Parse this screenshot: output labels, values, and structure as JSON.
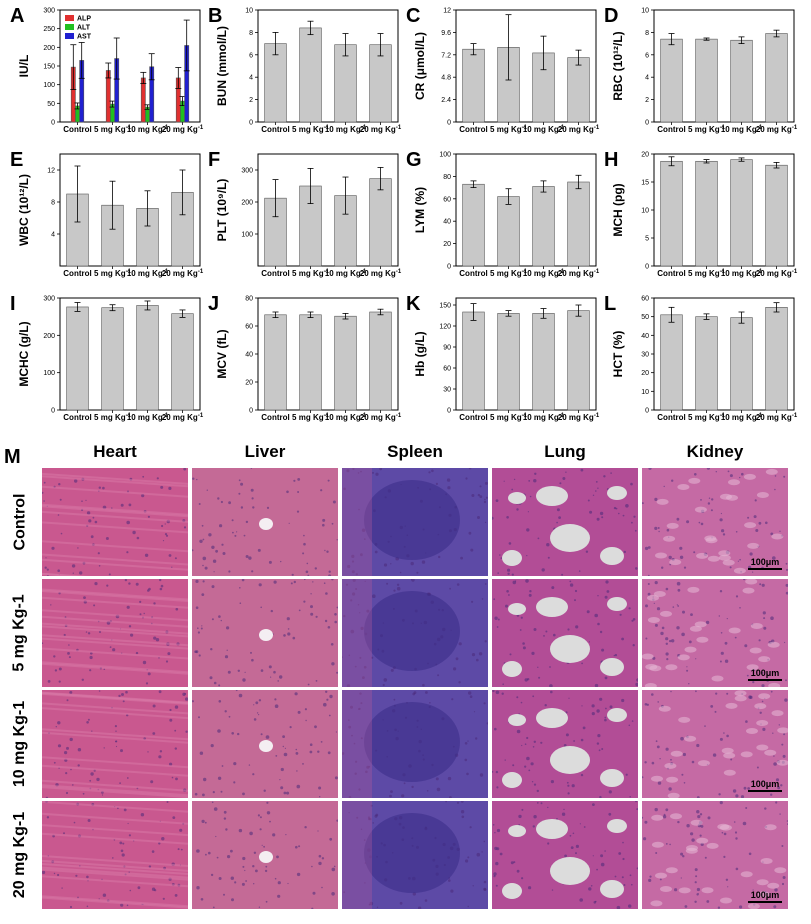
{
  "chart_data": [
    {
      "letter": "A",
      "type": "bar",
      "ylabel": "IU/L",
      "ylim": [
        0,
        300
      ],
      "yticks": [
        0,
        50,
        100,
        150,
        200,
        250,
        300
      ],
      "categories": [
        "Control",
        "5 mg Kg-1",
        "10 mg Kg-1",
        "20 mg Kg-1"
      ],
      "legend": "top-left",
      "series": [
        {
          "name": "ALP",
          "color": "#e03030",
          "values": [
            147,
            138,
            118,
            118
          ],
          "errors": [
            60,
            20,
            15,
            28
          ]
        },
        {
          "name": "ALT",
          "color": "#20c020",
          "values": [
            43,
            48,
            40,
            56
          ],
          "errors": [
            8,
            8,
            6,
            12
          ]
        },
        {
          "name": "AST",
          "color": "#2020d0",
          "values": [
            165,
            170,
            148,
            205
          ],
          "errors": [
            48,
            55,
            35,
            68
          ]
        }
      ]
    },
    {
      "letter": "B",
      "type": "bar",
      "ylabel": "BUN (mmol/L)",
      "ylim": [
        0,
        10
      ],
      "yticks": [
        0,
        2,
        4,
        6,
        8,
        10
      ],
      "categories": [
        "Control",
        "5 mg Kg-1",
        "10 mg Kg-1",
        "20 mg Kg-1"
      ],
      "series": [
        {
          "color": "#c8c8c8",
          "values": [
            7.0,
            8.4,
            6.9,
            6.9
          ],
          "errors": [
            1.0,
            0.6,
            1.0,
            1.0
          ]
        }
      ]
    },
    {
      "letter": "C",
      "type": "bar",
      "ylabel": "CR (μmol/L)",
      "ylim": [
        0,
        12
      ],
      "yticks": [
        0.0,
        2.4,
        4.8,
        7.2,
        9.6,
        12.0
      ],
      "categories": [
        "Control",
        "5 mg Kg-1",
        "10 mg Kg-1",
        "20 mg Kg-1"
      ],
      "series": [
        {
          "color": "#c8c8c8",
          "values": [
            7.8,
            8.0,
            7.4,
            6.9
          ],
          "errors": [
            0.6,
            3.5,
            1.8,
            0.8
          ]
        }
      ]
    },
    {
      "letter": "D",
      "type": "bar",
      "ylabel": "RBC (10¹²/L)",
      "ylim": [
        0,
        10
      ],
      "yticks": [
        0,
        2,
        4,
        6,
        8,
        10
      ],
      "categories": [
        "Control",
        "5 mg Kg-1",
        "10 mg Kg-1",
        "20 mg Kg-1"
      ],
      "series": [
        {
          "color": "#c8c8c8",
          "values": [
            7.4,
            7.4,
            7.3,
            7.9
          ],
          "errors": [
            0.5,
            0.1,
            0.3,
            0.3
          ]
        }
      ]
    },
    {
      "letter": "E",
      "type": "bar",
      "ylabel": "WBC (10¹²/L)",
      "ylim": [
        0,
        14
      ],
      "yticks": [
        4,
        8,
        12
      ],
      "categories": [
        "Control",
        "5 mg Kg-1",
        "10 mg Kg-1",
        "20 mg Kg-1"
      ],
      "series": [
        {
          "color": "#c8c8c8",
          "values": [
            9.0,
            7.6,
            7.2,
            9.2
          ],
          "errors": [
            3.5,
            3.0,
            2.2,
            2.8
          ]
        }
      ]
    },
    {
      "letter": "F",
      "type": "bar",
      "ylabel": "PLT (10⁹/L)",
      "ylim": [
        0,
        350
      ],
      "yticks": [
        100,
        200,
        300
      ],
      "categories": [
        "Control",
        "5 mg Kg-1",
        "10 mg Kg-1",
        "20 mg Kg-1"
      ],
      "series": [
        {
          "color": "#c8c8c8",
          "values": [
            212,
            250,
            220,
            273
          ],
          "errors": [
            58,
            55,
            58,
            35
          ]
        }
      ]
    },
    {
      "letter": "G",
      "type": "bar",
      "ylabel": "LYM (%)",
      "ylim": [
        0,
        100
      ],
      "yticks": [
        0,
        20,
        40,
        60,
        80,
        100
      ],
      "categories": [
        "Control",
        "5 mg Kg-1",
        "10 mg Kg-1",
        "20 mg Kg-1"
      ],
      "series": [
        {
          "color": "#c8c8c8",
          "values": [
            73,
            62,
            71,
            75
          ],
          "errors": [
            3,
            7,
            5,
            6
          ]
        }
      ]
    },
    {
      "letter": "H",
      "type": "bar",
      "ylabel": "MCH (pg)",
      "ylim": [
        0,
        20
      ],
      "yticks": [
        0,
        5,
        10,
        15,
        20
      ],
      "categories": [
        "Control",
        "5 mg Kg-1",
        "10 mg Kg-1",
        "20 mg Kg-1"
      ],
      "series": [
        {
          "color": "#c8c8c8",
          "values": [
            18.7,
            18.7,
            19.0,
            18.0
          ],
          "errors": [
            0.8,
            0.3,
            0.3,
            0.5
          ]
        }
      ]
    },
    {
      "letter": "I",
      "type": "bar",
      "ylabel": "MCHC (g/L)",
      "ylim": [
        0,
        300
      ],
      "yticks": [
        0,
        100,
        200,
        300
      ],
      "categories": [
        "Control",
        "5 mg Kg-1",
        "10 mg Kg-1",
        "20 mg Kg-1"
      ],
      "series": [
        {
          "color": "#c8c8c8",
          "values": [
            276,
            274,
            280,
            258
          ],
          "errors": [
            12,
            8,
            12,
            10
          ]
        }
      ]
    },
    {
      "letter": "J",
      "type": "bar",
      "ylabel": "MCV (fL)",
      "ylim": [
        0,
        80
      ],
      "yticks": [
        0,
        20,
        40,
        60,
        80
      ],
      "categories": [
        "Control",
        "5 mg Kg-1",
        "10 mg Kg-1",
        "20 mg Kg-1"
      ],
      "series": [
        {
          "color": "#c8c8c8",
          "values": [
            68,
            68,
            67,
            70
          ],
          "errors": [
            2,
            2,
            2,
            2
          ]
        }
      ]
    },
    {
      "letter": "K",
      "type": "bar",
      "ylabel": "Hb (g/L)",
      "ylim": [
        0,
        160
      ],
      "yticks": [
        0,
        30,
        60,
        90,
        120,
        150
      ],
      "categories": [
        "Control",
        "5 mg Kg-1",
        "10 mg Kg-1",
        "20 mg Kg-1"
      ],
      "series": [
        {
          "color": "#c8c8c8",
          "values": [
            140,
            138,
            138,
            142
          ],
          "errors": [
            12,
            4,
            7,
            8
          ]
        }
      ]
    },
    {
      "letter": "L",
      "type": "bar",
      "ylabel": "HCT (%)",
      "ylim": [
        0,
        60
      ],
      "yticks": [
        0,
        10,
        20,
        30,
        40,
        50,
        60
      ],
      "categories": [
        "Control",
        "5 mg Kg-1",
        "10 mg Kg-1",
        "20 mg Kg-1"
      ],
      "series": [
        {
          "color": "#c8c8c8",
          "values": [
            51,
            50,
            49.5,
            55
          ],
          "errors": [
            4,
            1.5,
            3,
            2.5
          ]
        }
      ]
    }
  ],
  "histology": {
    "letter": "M",
    "organs": [
      "Heart",
      "Liver",
      "Spleen",
      "Lung",
      "Kidney"
    ],
    "groups": [
      "Control",
      "5 mg Kg-1",
      "10 mg Kg-1",
      "20 mg Kg-1"
    ],
    "scale_label": "100μm",
    "colors": {
      "heart": "#c9588f",
      "liver": "#c46a96",
      "spleen": "#5d4aa6",
      "lung": "#b24d96",
      "kidney": "#c56aa4",
      "lung_space": "#dcdcdc"
    }
  }
}
